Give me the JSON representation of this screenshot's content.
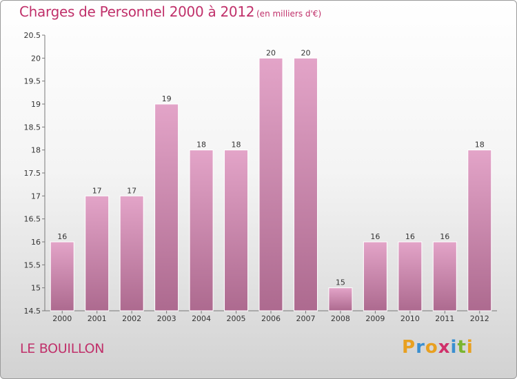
{
  "header": {
    "title": "Charges de Personnel 2000 à 2012",
    "unit": "(en milliers d'€)"
  },
  "footer": {
    "place": "LE BOUILLON",
    "logo_letters": [
      "P",
      "r",
      "o",
      "x",
      "i",
      "t",
      "i"
    ],
    "logo_colors": [
      "#e8a020",
      "#3a8fd0",
      "#e8a020",
      "#d0306a",
      "#3a8fd0",
      "#7ab530",
      "#e8a020"
    ]
  },
  "chart_data": {
    "type": "bar",
    "title": "Charges de Personnel 2000 à 2012",
    "subtitle": "(en milliers d'€)",
    "xlabel": "",
    "ylabel": "",
    "categories": [
      "2000",
      "2001",
      "2002",
      "2003",
      "2004",
      "2005",
      "2006",
      "2007",
      "2008",
      "2009",
      "2010",
      "2011",
      "2012"
    ],
    "values": [
      16,
      17,
      17,
      19,
      18,
      18,
      20,
      20,
      15,
      16,
      16,
      16,
      18
    ],
    "data_labels": [
      "16",
      "17",
      "17",
      "19",
      "18",
      "18",
      "20",
      "20",
      "15",
      "16",
      "16",
      "16",
      "18"
    ],
    "ylim": [
      14.5,
      20.5
    ],
    "yticks": [
      "14.5",
      "15",
      "15.5",
      "16",
      "16.5",
      "17",
      "17.5",
      "18",
      "18.5",
      "19",
      "19.5",
      "20",
      "20.5"
    ],
    "grid": false,
    "legend": "none",
    "bar_color_top": "#e3a4c8",
    "bar_color_bottom": "#ad6a8f"
  }
}
